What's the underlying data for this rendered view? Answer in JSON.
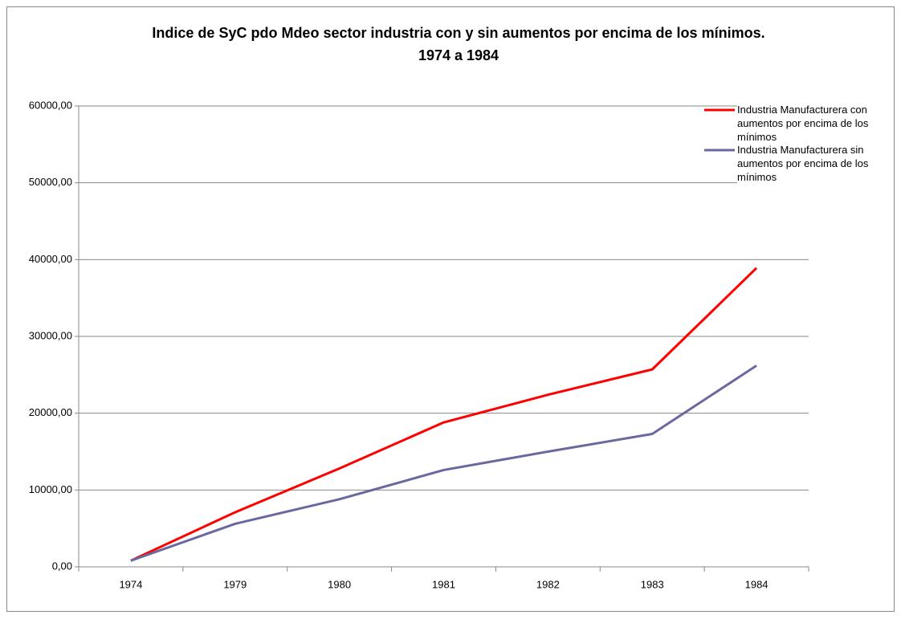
{
  "chart_data": {
    "type": "line",
    "title": [
      "Indice de SyC pdo Mdeo sector industria con y sin aumentos por encima de los mínimos.",
      "1974 a 1984"
    ],
    "categories": [
      "1974",
      "1979",
      "1980",
      "1981",
      "1982",
      "1983",
      "1984"
    ],
    "series": [
      {
        "name": "Industria Manufacturera con aumentos por encima de los mínimos",
        "color": "#ff0000",
        "values": [
          800,
          7100,
          12800,
          18800,
          22400,
          25700,
          38900
        ]
      },
      {
        "name": "Industria Manufacturera sin aumentos por encima de los mínimos",
        "color": "#6a68a0",
        "values": [
          800,
          5600,
          8800,
          12600,
          15000,
          17300,
          26200
        ]
      }
    ],
    "ylim": [
      0,
      60000
    ],
    "yticks": [
      {
        "value": 0,
        "label": "0,00"
      },
      {
        "value": 10000,
        "label": "10000,00"
      },
      {
        "value": 20000,
        "label": "20000,00"
      },
      {
        "value": 30000,
        "label": "30000,00"
      },
      {
        "value": 40000,
        "label": "40000,00"
      },
      {
        "value": 50000,
        "label": "50000,00"
      },
      {
        "value": 60000,
        "label": "60000,00"
      }
    ],
    "grid": true,
    "legend": "top-right"
  }
}
